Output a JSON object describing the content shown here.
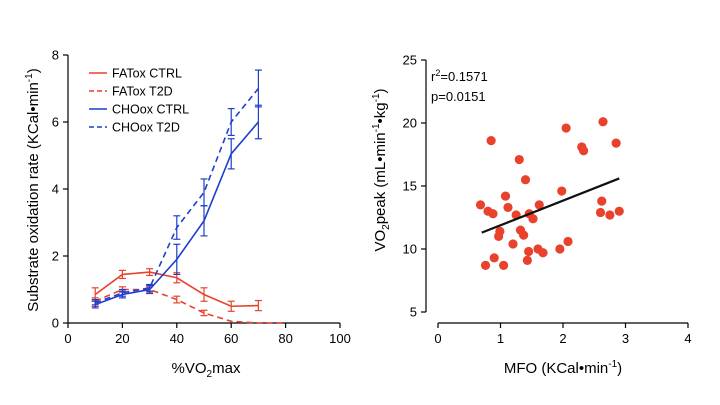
{
  "chart_data": [
    {
      "type": "line",
      "xlabel": {
        "pre": "%VO",
        "sub": "2",
        "post": "max"
      },
      "ylabel": {
        "pre": "Substrate oxidation rate (KCal•min",
        "sup": "-1",
        "post": ")"
      },
      "xlim": [
        0,
        100
      ],
      "ylim": [
        0,
        8
      ],
      "xticks": [
        0,
        20,
        40,
        60,
        80,
        100
      ],
      "yticks": [
        0,
        2,
        4,
        6,
        8
      ],
      "grid": false,
      "legend_position": "top-left",
      "series": [
        {
          "name": "FATox CTRL",
          "color": "#e8412c",
          "dash": "solid",
          "x": [
            10,
            20,
            30,
            40,
            50,
            60,
            70
          ],
          "y": [
            0.85,
            1.45,
            1.52,
            1.35,
            0.85,
            0.5,
            0.52
          ],
          "err": [
            0.2,
            0.12,
            0.1,
            0.15,
            0.2,
            0.15,
            0.15
          ]
        },
        {
          "name": "FATox T2D",
          "color": "#e8412c",
          "dash": "dashed",
          "x": [
            10,
            20,
            30,
            40,
            50,
            60,
            70,
            80
          ],
          "y": [
            0.65,
            1.0,
            1.0,
            0.7,
            0.3,
            0.05,
            0.0,
            0.0
          ],
          "err": [
            0.1,
            0.08,
            0.08,
            0.1,
            0.08,
            0.0,
            0.0,
            0.0
          ]
        },
        {
          "name": "CHOox CTRL",
          "color": "#1f3fcc",
          "dash": "solid",
          "x": [
            10,
            20,
            30,
            40,
            50,
            60,
            70
          ],
          "y": [
            0.55,
            0.85,
            1.0,
            1.9,
            3.05,
            5.05,
            6.0
          ],
          "err": [
            0.1,
            0.1,
            0.12,
            0.45,
            0.45,
            0.45,
            0.5
          ]
        },
        {
          "name": "CHOox T2D",
          "color": "#1f3fcc",
          "dash": "dashed",
          "x": [
            10,
            20,
            30,
            40,
            50,
            60,
            70
          ],
          "y": [
            0.6,
            0.9,
            1.05,
            2.85,
            3.9,
            6.0,
            7.0
          ],
          "err": [
            0.1,
            0.1,
            0.1,
            0.35,
            0.4,
            0.4,
            0.55
          ]
        }
      ]
    },
    {
      "type": "scatter",
      "xlabel": {
        "pre": "MFO (KCal•min",
        "sup": "-1",
        "post": ")"
      },
      "ylabel": {
        "pre": "VO",
        "sub": "2",
        "mid": "peak (mL•min",
        "sup": "-1",
        "mid2": "•kg",
        "sup2": "-1",
        "post": ")"
      },
      "xlim": [
        0,
        4
      ],
      "ylim": [
        5,
        25
      ],
      "xticks": [
        0,
        1,
        2,
        3,
        4
      ],
      "yticks": [
        5,
        10,
        15,
        20,
        25
      ],
      "grid": false,
      "point_color": "#e8412c",
      "stats": {
        "r2_label": "r",
        "r2_sup": "2",
        "r2_value": "=0.1571",
        "p_text": "p=0.0151"
      },
      "fit_line": {
        "x": [
          0.7,
          2.9
        ],
        "y": [
          11.3,
          15.6
        ],
        "color": "#111111"
      },
      "points": [
        {
          "x": 0.68,
          "y": 13.5
        },
        {
          "x": 0.76,
          "y": 8.7
        },
        {
          "x": 0.8,
          "y": 13.0
        },
        {
          "x": 0.85,
          "y": 18.6
        },
        {
          "x": 0.88,
          "y": 12.8
        },
        {
          "x": 0.9,
          "y": 9.3
        },
        {
          "x": 0.97,
          "y": 11.0
        },
        {
          "x": 0.99,
          "y": 11.4
        },
        {
          "x": 1.05,
          "y": 8.7
        },
        {
          "x": 1.08,
          "y": 14.2
        },
        {
          "x": 1.12,
          "y": 13.3
        },
        {
          "x": 1.2,
          "y": 10.4
        },
        {
          "x": 1.25,
          "y": 12.7
        },
        {
          "x": 1.3,
          "y": 17.1
        },
        {
          "x": 1.32,
          "y": 11.5
        },
        {
          "x": 1.37,
          "y": 11.1
        },
        {
          "x": 1.4,
          "y": 15.5
        },
        {
          "x": 1.43,
          "y": 9.1
        },
        {
          "x": 1.45,
          "y": 9.8
        },
        {
          "x": 1.46,
          "y": 12.8
        },
        {
          "x": 1.52,
          "y": 12.4
        },
        {
          "x": 1.6,
          "y": 10.0
        },
        {
          "x": 1.62,
          "y": 13.5
        },
        {
          "x": 1.68,
          "y": 9.7
        },
        {
          "x": 1.95,
          "y": 10.0
        },
        {
          "x": 1.98,
          "y": 14.6
        },
        {
          "x": 2.05,
          "y": 19.6
        },
        {
          "x": 2.08,
          "y": 10.6
        },
        {
          "x": 2.3,
          "y": 18.1
        },
        {
          "x": 2.33,
          "y": 17.8
        },
        {
          "x": 2.6,
          "y": 12.9
        },
        {
          "x": 2.62,
          "y": 13.8
        },
        {
          "x": 2.64,
          "y": 20.1
        },
        {
          "x": 2.75,
          "y": 12.7
        },
        {
          "x": 2.85,
          "y": 18.4
        },
        {
          "x": 2.9,
          "y": 13.0
        }
      ]
    }
  ]
}
